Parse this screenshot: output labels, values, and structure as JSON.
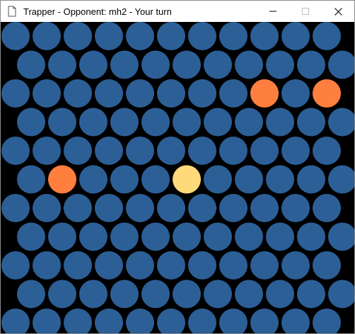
{
  "window": {
    "title": "Trapper - Opponent: mh2 - Your turn",
    "app_icon": "trapper-app-icon",
    "controls": {
      "minimize_icon": "minimize-icon",
      "maximize_icon": "maximize-icon",
      "close_icon": "close-icon"
    }
  },
  "board": {
    "layout": "hexagonal-offset-rows",
    "rows": 11,
    "cols": 11,
    "colors": {
      "background": "#000000",
      "empty": "#2C5F96",
      "blocked": "#FF7F3F",
      "player": "#FFD97A"
    },
    "blocked_cells": [
      [
        2,
        8
      ],
      [
        2,
        10
      ],
      [
        5,
        1
      ]
    ],
    "player_cell": [
      5,
      5
    ]
  }
}
